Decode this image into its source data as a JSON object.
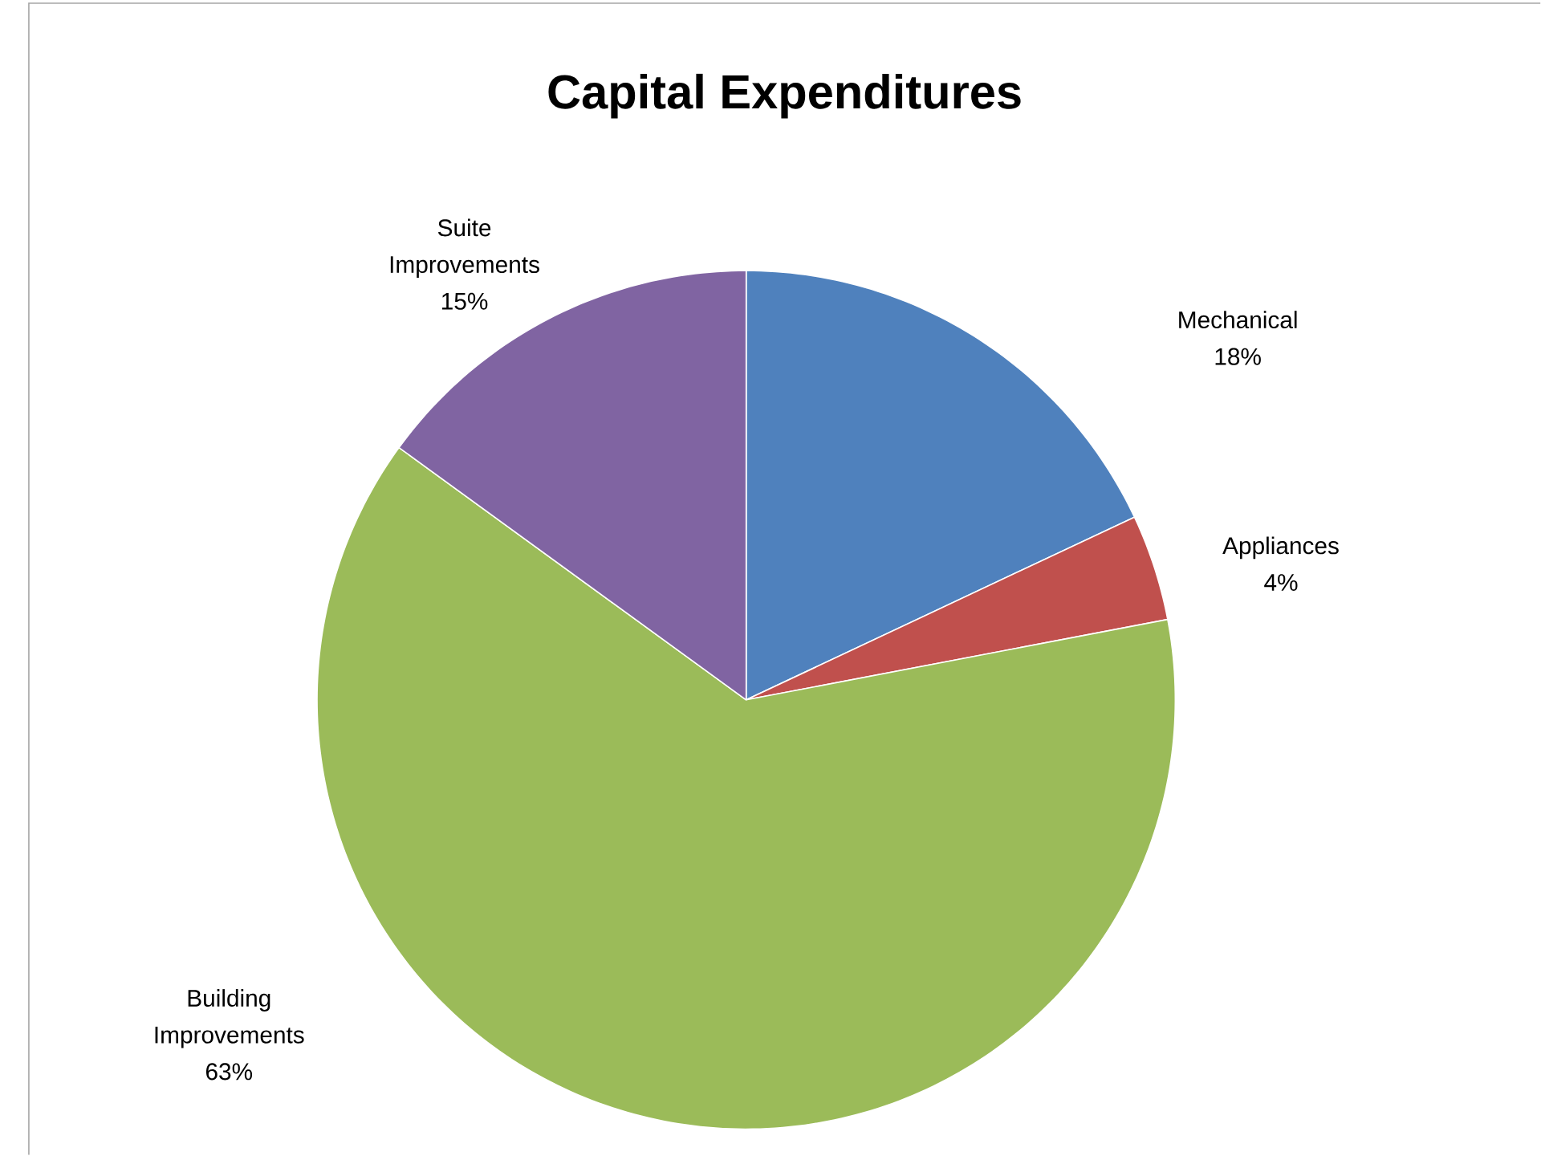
{
  "chart_data": {
    "type": "pie",
    "title": "Capital Expenditures",
    "categories": [
      "Mechanical",
      "Appliances",
      "Building Improvements",
      "Suite Improvements"
    ],
    "values": [
      18,
      4,
      63,
      15
    ],
    "colors": [
      "#4f81bd",
      "#c0504d",
      "#9bbb59",
      "#8064a2"
    ],
    "value_labels": [
      "18%",
      "4%",
      "63%",
      "15%"
    ]
  }
}
